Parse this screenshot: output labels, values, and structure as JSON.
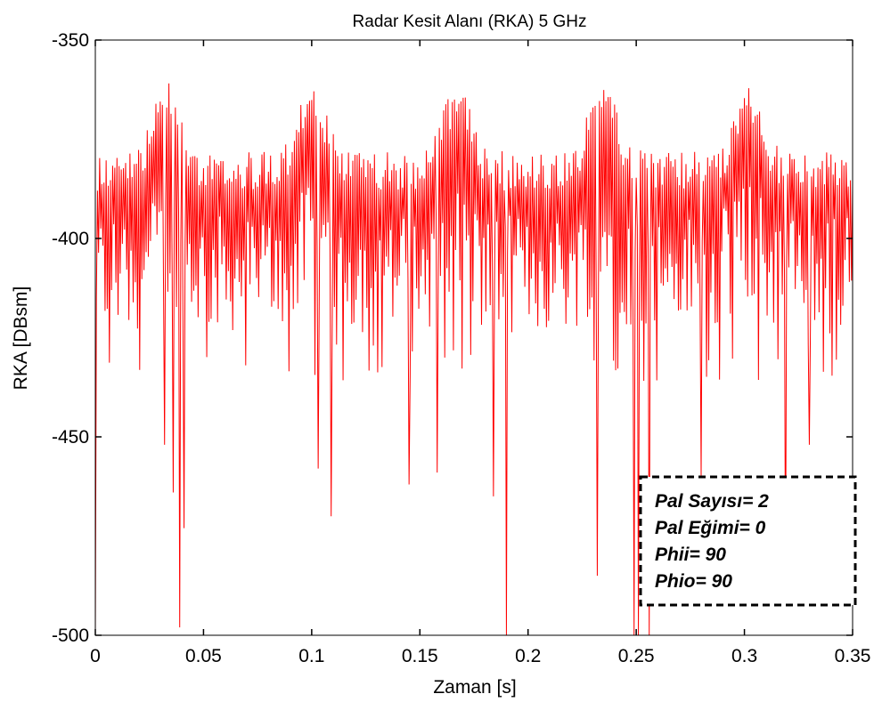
{
  "chart_data": {
    "type": "line",
    "title": "Radar Kesit Alanı (RKA) 5 GHz",
    "xlabel": "Zaman [s]",
    "ylabel": "RKA [DBsm]",
    "xlim": [
      0,
      0.35
    ],
    "ylim": [
      -500,
      -350
    ],
    "xticks": [
      0,
      0.05,
      0.1,
      0.15,
      0.2,
      0.25,
      0.3,
      0.35
    ],
    "xtick_labels": [
      "0",
      "0.05",
      "0.1",
      "0.15",
      "0.2",
      "0.25",
      "0.3",
      "0.35"
    ],
    "yticks": [
      -500,
      -450,
      -400,
      -350
    ],
    "ytick_labels": [
      "-500",
      "-450",
      "-400",
      "-350"
    ],
    "grid": false,
    "series": [
      {
        "color": "#ff0000",
        "sample_count": 700,
        "envelope_period": 0.067,
        "envelope_upper_peak": -360,
        "envelope_upper_trough": -378,
        "typical_lower_min": -436,
        "deep_nulls": [
          {
            "x": 0.0,
            "y": -500
          },
          {
            "x": 0.032,
            "y": -452
          },
          {
            "x": 0.036,
            "y": -464
          },
          {
            "x": 0.039,
            "y": -498
          },
          {
            "x": 0.041,
            "y": -473
          },
          {
            "x": 0.103,
            "y": -458
          },
          {
            "x": 0.109,
            "y": -470
          },
          {
            "x": 0.145,
            "y": -462
          },
          {
            "x": 0.158,
            "y": -459
          },
          {
            "x": 0.184,
            "y": -465
          },
          {
            "x": 0.19,
            "y": -500
          },
          {
            "x": 0.232,
            "y": -485
          },
          {
            "x": 0.249,
            "y": -500
          },
          {
            "x": 0.251,
            "y": -500
          },
          {
            "x": 0.256,
            "y": -500
          },
          {
            "x": 0.28,
            "y": -460
          },
          {
            "x": 0.319,
            "y": -489
          },
          {
            "x": 0.33,
            "y": -452
          }
        ]
      }
    ],
    "annotation": {
      "lines": [
        "Pal Sayısı= 2",
        "Pal Eğimi= 0",
        "Phii= 90",
        "Phio= 90"
      ],
      "placement": "lower-right",
      "border_style": "dashed"
    }
  }
}
